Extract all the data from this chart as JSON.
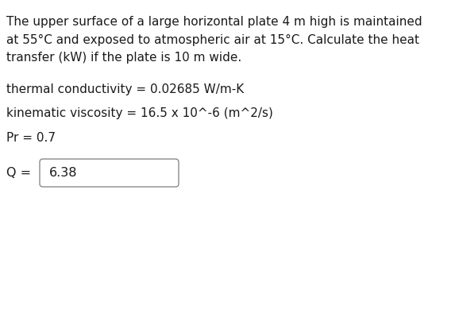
{
  "background_color": "#ffffff",
  "title_lines": [
    "The upper surface of a large horizontal plate 4 m high is maintained",
    "at 55°C and exposed to atmospheric air at 15°C. Calculate the heat",
    "transfer (kW) if the plate is 10 m wide."
  ],
  "param_lines": [
    "thermal conductivity = 0.02685 W/m-K",
    "kinematic viscosity = 16.5 x 10^-6 (m^2/s)",
    "Pr = 0.7"
  ],
  "answer_label": "Q = ",
  "answer_value": "6.38",
  "text_color": "#1a1a1a",
  "box_edge_color": "#8a8a8a",
  "font_size_body": 11.0,
  "font_size_answer": 11.5
}
